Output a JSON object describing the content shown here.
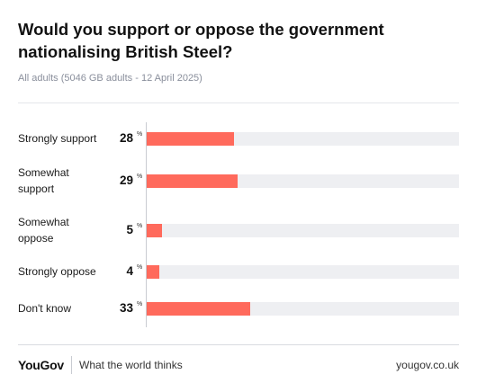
{
  "title": "Would you support or oppose the government nationalising British Steel?",
  "subtitle": "All adults (5046 GB adults - 12 April 2025)",
  "footer": {
    "brand": "YouGov",
    "tagline": "What the world thinks",
    "site": "yougov.co.uk"
  },
  "colors": {
    "bar": "#ff6a5c",
    "track": "#eeeff2"
  },
  "chart_data": {
    "type": "bar",
    "orientation": "horizontal",
    "categories": [
      "Strongly support",
      "Somewhat support",
      "Somewhat oppose",
      "Strongly oppose",
      "Don't know"
    ],
    "values": [
      28,
      29,
      5,
      4,
      33
    ],
    "value_suffix": "%",
    "xlim": [
      0,
      100
    ]
  }
}
